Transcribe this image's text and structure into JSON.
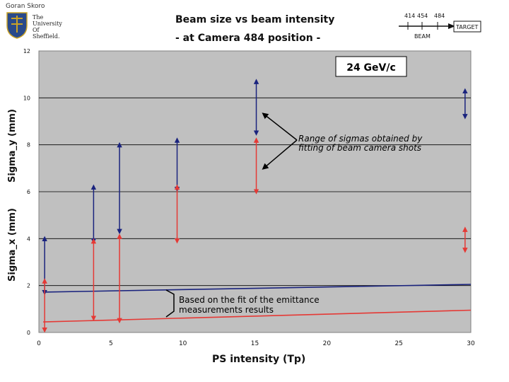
{
  "header": {
    "author": "Goran Skoro",
    "university": "The\nUniversity\nOf\nSheffield.",
    "title": "Beam size vs beam intensity",
    "subtitle": "- at Camera 484 position -"
  },
  "beam_diagram": {
    "positions": [
      "414",
      "454",
      "484"
    ],
    "beam_label": "BEAM",
    "target_label": "TARGET"
  },
  "chart_data": {
    "type": "scatter",
    "title": "",
    "xlabel": "PS intensity (Tp)",
    "ylabel_top": "Sigma_y (mm)",
    "ylabel_bottom": "Sigma_x (mm)",
    "xlim": [
      0,
      30
    ],
    "ylim": [
      0,
      12
    ],
    "x_ticks": [
      0,
      5,
      10,
      15,
      20,
      25,
      30
    ],
    "y_ticks": [
      0,
      2,
      4,
      6,
      8,
      10,
      12
    ],
    "grid": true,
    "energy_label": "24 GeV/c",
    "annotation_ranges": "Range of sigmas obtained by fitting of beam camera shots",
    "annotation_fit": "Based on the fit of the emittance measurements results",
    "series": [
      {
        "name": "Sigma_y",
        "color": "#1a237e",
        "ranges": [
          {
            "x": 0.4,
            "low": 1.7,
            "high": 4.0
          },
          {
            "x": 3.8,
            "low": 3.9,
            "high": 6.2
          },
          {
            "x": 5.6,
            "low": 4.3,
            "high": 8.0
          },
          {
            "x": 9.6,
            "low": 6.1,
            "high": 8.2
          },
          {
            "x": 15.1,
            "low": 8.5,
            "high": 10.7
          },
          {
            "x": 29.6,
            "low": 9.2,
            "high": 10.3
          }
        ],
        "fit": [
          [
            0.3,
            1.72
          ],
          [
            30,
            2.05
          ]
        ]
      },
      {
        "name": "Sigma_x",
        "color": "#e53935",
        "ranges": [
          {
            "x": 0.4,
            "low": 0.1,
            "high": 2.2
          },
          {
            "x": 3.8,
            "low": 0.6,
            "high": 3.9
          },
          {
            "x": 5.6,
            "low": 0.5,
            "high": 4.1
          },
          {
            "x": 9.6,
            "low": 3.9,
            "high": 6.2
          },
          {
            "x": 15.1,
            "low": 6.0,
            "high": 8.2
          },
          {
            "x": 29.6,
            "low": 3.5,
            "high": 4.4
          }
        ],
        "fit": [
          [
            0.3,
            0.45
          ],
          [
            30,
            0.95
          ]
        ]
      }
    ]
  }
}
